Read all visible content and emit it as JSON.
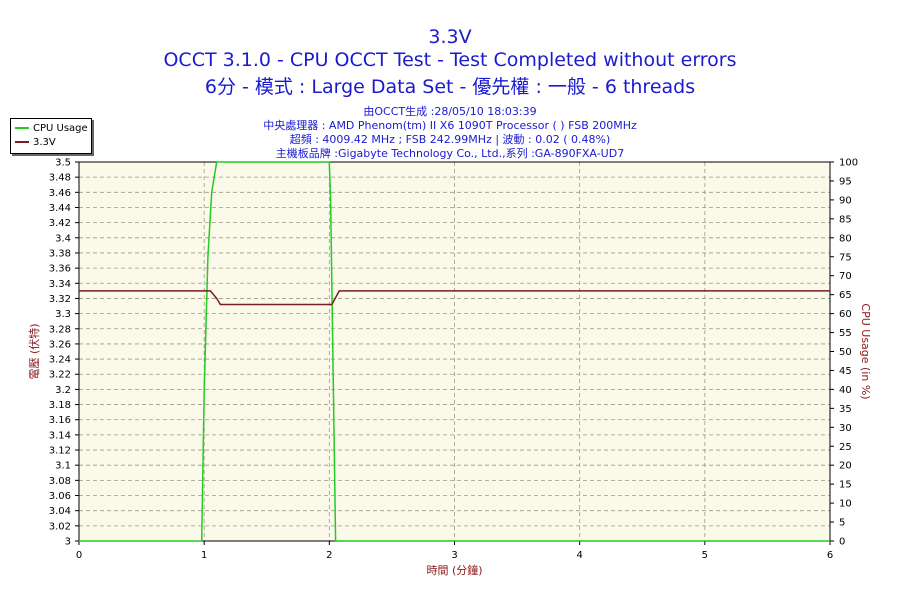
{
  "header": {
    "title": "3.3V",
    "line1": "OCCT 3.1.0 - CPU OCCT Test - Test Completed without errors",
    "line2": "6分 - 模式 : Large Data Set - 優先權 : 一般 - 6 threads",
    "info1": "由OCCT生成 :28/05/10 18:03:39",
    "info2": "中央處理器 : AMD Phenom(tm) II X6 1090T Processor (    ) FSB 200MHz",
    "info3": "超頻 : 4009.42 MHz ; FSB 242.99MHz | 波動 : 0.02 ( 0.48%)",
    "info4": "主機板品牌 :Gigabyte Technology Co., Ltd.,系列 :GA-890FXA-UD7"
  },
  "colors": {
    "cpu": "#22cc22",
    "volt": "#7a1a2a",
    "plot_bg": "#fbfaea",
    "title": "#1a1ad0",
    "axis_label": "#8b1a1a"
  },
  "chart_data": {
    "type": "line",
    "xlabel": "時間 (分鐘)",
    "ylabel_left": "電壓 (伏特)",
    "ylabel_right": "CPU Usage (in %)",
    "xlim": [
      0,
      6
    ],
    "ylim_left": [
      3.0,
      3.5
    ],
    "ylim_right": [
      0,
      100
    ],
    "x_ticks": [
      "0",
      "1",
      "2",
      "3",
      "4",
      "5",
      "6"
    ],
    "y_ticks_left": [
      "3",
      "3.02",
      "3.04",
      "3.06",
      "3.08",
      "3.1",
      "3.12",
      "3.14",
      "3.16",
      "3.18",
      "3.2",
      "3.22",
      "3.24",
      "3.26",
      "3.28",
      "3.3",
      "3.32",
      "3.34",
      "3.36",
      "3.38",
      "3.4",
      "3.42",
      "3.44",
      "3.46",
      "3.48",
      "3.5"
    ],
    "y_ticks_right": [
      "0",
      "5",
      "10",
      "15",
      "20",
      "25",
      "30",
      "35",
      "40",
      "45",
      "50",
      "55",
      "60",
      "65",
      "70",
      "75",
      "80",
      "85",
      "90",
      "95",
      "100"
    ],
    "grid": true,
    "legend_position": "top-left",
    "series": [
      {
        "name": "CPU Usage",
        "axis": "right",
        "x": [
          0.0,
          0.98,
          1.0,
          1.03,
          1.06,
          1.1,
          1.2,
          1.5,
          1.8,
          2.0,
          2.01,
          2.03,
          2.05,
          6.0
        ],
        "y": [
          0,
          0,
          40,
          75,
          92,
          100,
          100,
          100,
          100,
          100,
          90,
          45,
          0,
          0
        ]
      },
      {
        "name": "3.3V",
        "axis": "left",
        "x": [
          0.0,
          1.05,
          1.1,
          1.13,
          1.5,
          1.9,
          2.02,
          2.08,
          6.0
        ],
        "y": [
          3.33,
          3.33,
          3.32,
          3.312,
          3.312,
          3.312,
          3.312,
          3.33,
          3.33
        ]
      }
    ]
  }
}
